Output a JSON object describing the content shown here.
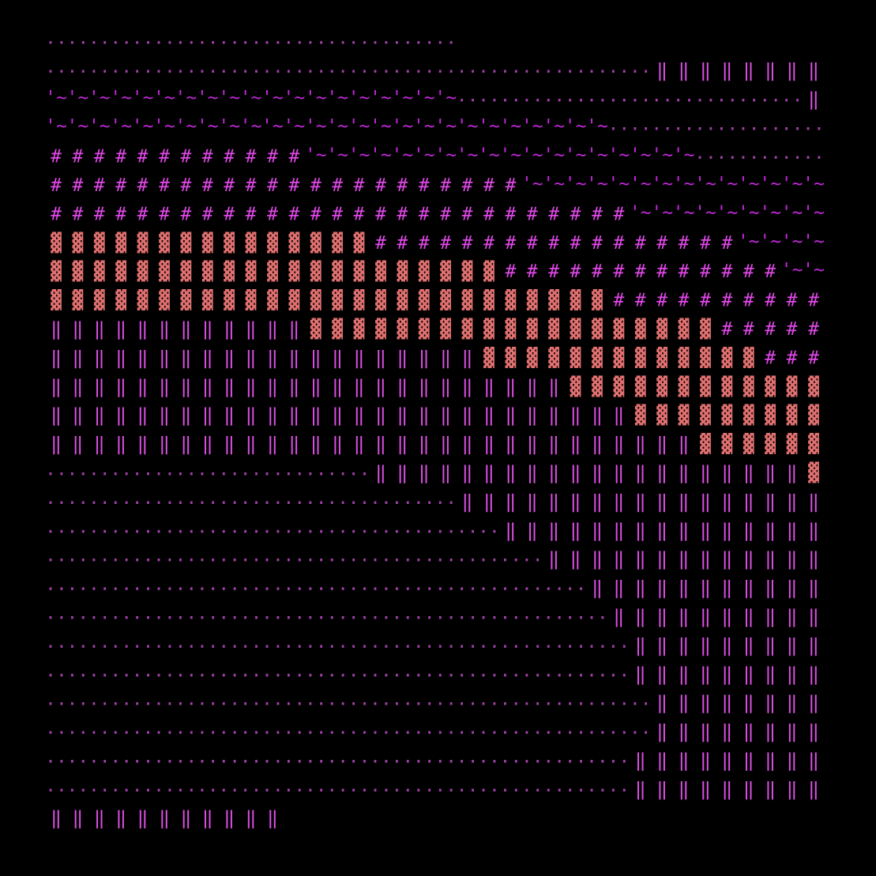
{
  "palette": {
    "background": "#000000",
    "dots": "#a040a8",
    "bars": "#e050e8",
    "tilde": "#c028d8",
    "hash": "#e048e8",
    "block": "#e07070"
  },
  "glyphs": {
    "dots": "··",
    "bars": "‖",
    "tilde": "'~",
    "hash": "#",
    "block": "▓"
  },
  "rows": [
    "DDDDDDDDDDDDDDDDDDD",
    "DDDDDDDDDDDDDDDDDDDDDDDDDDDDBBBBBBBBBB",
    "TTTTTTTTTTTTTTTTTTTDDDDDDDDDDDDDDDDBBBB",
    "TTTTTTTTTTTTTTTTTTTTTTTTTTDDDDDDDDDDDDD",
    "HHHHHHHHHHHHTTTTTTTTTTTTTTTTTTDDDDDDDD",
    "HHHHHHHHHHHHHHHHHHHHHHTTTTTTTTTTTTTTDDD",
    "HHHHHHHHHHHHHHHHHHHHHHHHHHHTTTTTTTTTTT",
    "KKKKKKKKKKKKKKKHHHHHHHHHHHHHHHHHTTTTTTT",
    "KKKKKKKKKKKKKKKKKKKKKHHHHHHHHHHHHHTTTT",
    "KKKKKKKKKKKKKKKKKKKKKKKKKKHHHHHHHHHHHH",
    "BBBBBBBBBBBBKKKKKKKKKKKKKKKKKKKHHHHHHH",
    "BBBBBBBBBBBBBBBBBBBBKKKKKKKKKKKKKHHHHH",
    "BBBBBBBBBBBBBBBBBBBBBBBBKKKKKKKKKKKKKHH",
    "BBBBBBBBBBBBBBBBBBBBBBBBBBBKKKKKKKKKKKK",
    "BBBBBBBBBBBBBBBBBBBBBBBBBBBBBBKKKKKKKKK",
    "DDDDDDDDDDDDDDDBBBBBBBBBBBBBBBBBBBBKKKK",
    "DDDDDDDDDDDDDDDDDDDBBBBBBBBBBBBBBBBBBKKK",
    "DDDDDDDDDDDDDDDDDDDDDBBBBBBBBBBBBBBBBBKK",
    "DDDDDDDDDDDDDDDDDDDDDDDBBBBBBBBBBBBBBBBK",
    "DDDDDDDDDDDDDDDDDDDDDDDDDBBBBBBBBBBBBBBBK",
    "DDDDDDDDDDDDDDDDDDDDDDDDDDBBBBBBBBBBBBBBB",
    "DDDDDDDDDDDDDDDDDDDDDDDDDDDBBBBBBBBBBBBBB",
    "DDDDDDDDDDDDDDDDDDDDDDDDDDDBBBBBBBBBBBBB",
    "DDDDDDDDDDDDDDDDDDDDDDDDDDDDBBBBBBBBBBBB",
    "DDDDDDDDDDDDDDDDDDDDDDDDDDDDBBBBBBBBBBBB",
    "DDDDDDDDDDDDDDDDDDDDDDDDDDDBBBBBBBBBBBBB",
    "DDDDDDDDDDDDDDDDDDDDDDDDDDDBBBBBBBBBBBBB",
    "BBBBBBBBBBB"
  ]
}
